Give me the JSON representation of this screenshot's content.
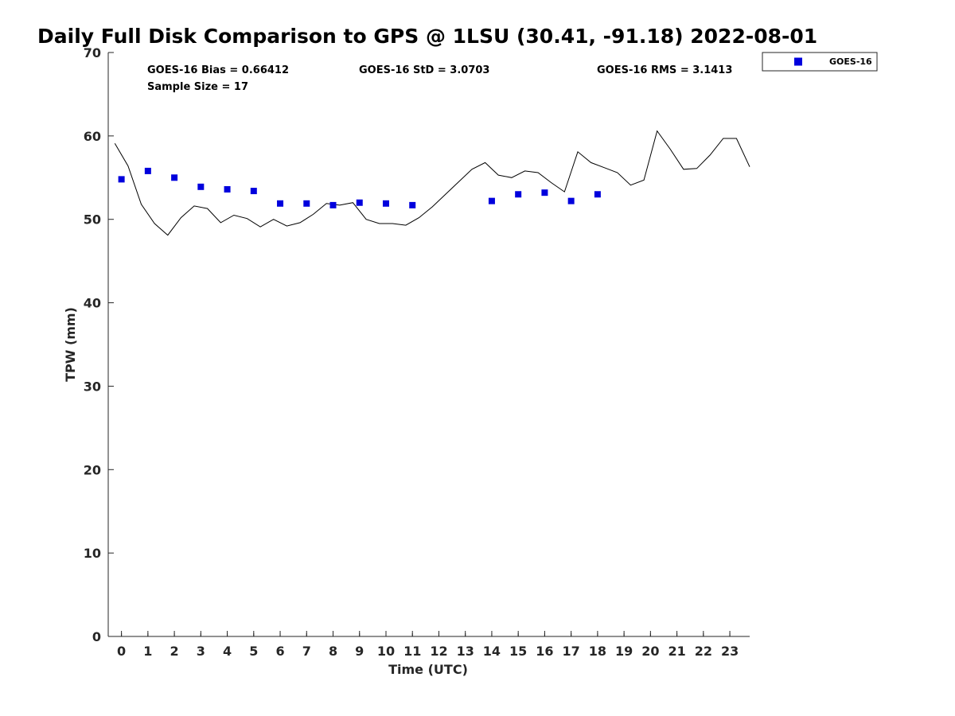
{
  "chart_data": {
    "type": "scatter",
    "title": "Daily Full Disk Comparison to GPS @ 1LSU (30.41, -91.18) 2022-08-01",
    "xlabel": "Time (UTC)",
    "ylabel": "TPW (mm)",
    "xlim": [
      -0.5,
      23.75
    ],
    "ylim": [
      0,
      70
    ],
    "x_ticks": [
      0,
      1,
      2,
      3,
      4,
      5,
      6,
      7,
      8,
      9,
      10,
      11,
      12,
      13,
      14,
      15,
      16,
      17,
      18,
      19,
      20,
      21,
      22,
      23
    ],
    "y_ticks": [
      0,
      10,
      20,
      30,
      40,
      50,
      60,
      70
    ],
    "grid": false,
    "legend_position": "top-right",
    "colors": {
      "goes": "#0000dd",
      "gps_line": "#000000",
      "axis": "#262626"
    },
    "stats": {
      "bias": "GOES-16 Bias = 0.66412",
      "std": "GOES-16 StD = 3.0703",
      "rms": "GOES-16 RMS = 3.1413",
      "sample": "Sample Size = 17"
    },
    "series": [
      {
        "name": "GOES-16",
        "kind": "marker",
        "x": [
          0,
          1,
          2,
          3,
          4,
          5,
          6,
          7,
          8,
          9,
          10,
          11,
          14,
          15,
          16,
          17,
          18
        ],
        "y": [
          54.8,
          55.8,
          55.0,
          53.9,
          53.6,
          53.4,
          51.9,
          51.9,
          51.7,
          52.0,
          51.9,
          51.7,
          52.2,
          53.0,
          53.2,
          52.2,
          53.0
        ]
      },
      {
        "kind": "line",
        "x": [
          -0.25,
          0.25,
          0.75,
          1.25,
          1.75,
          2.25,
          2.75,
          3.25,
          3.75,
          4.25,
          4.75,
          5.25,
          5.75,
          6.25,
          6.75,
          7.25,
          7.75,
          8.25,
          8.75,
          9.25,
          9.75,
          10.25,
          10.75,
          11.25,
          11.75,
          12.25,
          12.75,
          13.25,
          13.75,
          14.25,
          14.75,
          15.25,
          15.75,
          16.25,
          16.75,
          17.25,
          17.75,
          18.25,
          18.75,
          19.25,
          19.75,
          20.25,
          20.75,
          21.25,
          21.75,
          22.25,
          22.75,
          23.25,
          23.75
        ],
        "y": [
          59.1,
          56.4,
          51.8,
          49.5,
          48.1,
          50.2,
          51.6,
          51.3,
          49.6,
          50.5,
          50.1,
          49.1,
          50.0,
          49.2,
          49.6,
          50.6,
          51.9,
          51.7,
          52.0,
          50.0,
          49.5,
          49.5,
          49.3,
          50.2,
          51.5,
          53.0,
          54.5,
          56.0,
          56.8,
          55.3,
          55.0,
          55.8,
          55.6,
          54.4,
          53.3,
          58.1,
          56.8,
          56.2,
          55.6,
          54.1,
          54.7,
          60.6,
          58.4,
          56.0,
          56.1,
          57.7,
          59.7,
          59.7,
          56.3
        ]
      }
    ]
  }
}
